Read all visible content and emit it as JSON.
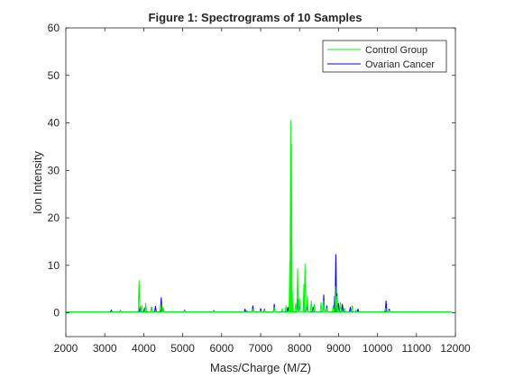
{
  "chart_data": {
    "type": "line",
    "title": "Figure 1: Spectrograms of 10 Samples",
    "xlabel": "Mass/Charge (M/Z)",
    "ylabel": "Ion Intensity",
    "xlim": [
      2000,
      12000
    ],
    "ylim": [
      -5,
      60
    ],
    "xticks": [
      2000,
      3000,
      4000,
      5000,
      6000,
      7000,
      8000,
      9000,
      10000,
      11000,
      12000
    ],
    "yticks": [
      0,
      10,
      20,
      30,
      40,
      50,
      60
    ],
    "grid": false,
    "legend_position": "top-right",
    "baseline": 0.2,
    "series": [
      {
        "name": "Ovarian Cancer",
        "color": "#0000ff",
        "peaks": [
          [
            3170,
            0.6
          ],
          [
            3400,
            0.5
          ],
          [
            3900,
            1.5
          ],
          [
            4020,
            1.0
          ],
          [
            4200,
            1.2
          ],
          [
            4300,
            1.4
          ],
          [
            4450,
            3.2
          ],
          [
            4500,
            1.0
          ],
          [
            5050,
            0.6
          ],
          [
            5800,
            0.5
          ],
          [
            6600,
            0.8
          ],
          [
            6800,
            1.5
          ],
          [
            7000,
            0.9
          ],
          [
            7100,
            0.8
          ],
          [
            7350,
            1.8
          ],
          [
            7700,
            1.2
          ],
          [
            7760,
            9.0
          ],
          [
            7790,
            5.5
          ],
          [
            7950,
            3.0
          ],
          [
            8000,
            2.0
          ],
          [
            8110,
            2.8
          ],
          [
            8200,
            1.5
          ],
          [
            8350,
            1.2
          ],
          [
            8620,
            3.8
          ],
          [
            8700,
            1.5
          ],
          [
            8900,
            3.5
          ],
          [
            8930,
            12.3
          ],
          [
            8960,
            4.0
          ],
          [
            9000,
            2.0
          ],
          [
            9100,
            1.8
          ],
          [
            9300,
            1.2
          ],
          [
            9500,
            0.8
          ],
          [
            10220,
            2.5
          ],
          [
            10300,
            0.8
          ]
        ]
      },
      {
        "name": "Control Group",
        "color": "#00ff00",
        "peaks": [
          [
            3150,
            0.5
          ],
          [
            3400,
            0.4
          ],
          [
            3880,
            6.8
          ],
          [
            3950,
            1.6
          ],
          [
            4050,
            2.0
          ],
          [
            4200,
            1.0
          ],
          [
            4430,
            1.8
          ],
          [
            4500,
            1.2
          ],
          [
            5050,
            0.5
          ],
          [
            5800,
            0.4
          ],
          [
            6650,
            0.5
          ],
          [
            6800,
            0.8
          ],
          [
            7000,
            0.5
          ],
          [
            7100,
            0.6
          ],
          [
            7350,
            1.2
          ],
          [
            7550,
            0.9
          ],
          [
            7650,
            1.5
          ],
          [
            7750,
            11.0
          ],
          [
            7770,
            40.5
          ],
          [
            7790,
            35.5
          ],
          [
            7810,
            4.5
          ],
          [
            7900,
            2.0
          ],
          [
            7950,
            9.3
          ],
          [
            8000,
            3.0
          ],
          [
            8110,
            6.0
          ],
          [
            8140,
            10.3
          ],
          [
            8200,
            3.5
          ],
          [
            8300,
            2.5
          ],
          [
            8380,
            1.8
          ],
          [
            8550,
            2.2
          ],
          [
            8620,
            2.5
          ],
          [
            8700,
            1.0
          ],
          [
            8860,
            1.5
          ],
          [
            8920,
            5.5
          ],
          [
            8960,
            3.5
          ],
          [
            9050,
            2.2
          ],
          [
            9150,
            1.0
          ],
          [
            9350,
            1.5
          ],
          [
            9450,
            0.6
          ],
          [
            10200,
            1.0
          ],
          [
            10300,
            0.5
          ]
        ]
      }
    ]
  }
}
